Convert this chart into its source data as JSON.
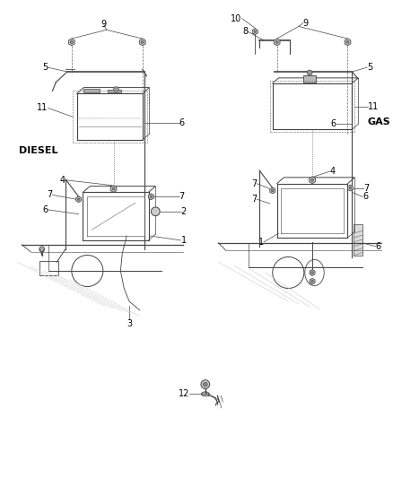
{
  "bg_color": "#ffffff",
  "lc": "#888888",
  "lc_dark": "#444444",
  "lc_med": "#666666",
  "label_color": "#000000",
  "fs": 7,
  "fs_big": 8,
  "left_label": "DIESEL",
  "right_label": "GAS",
  "figw": 4.38,
  "figh": 5.33,
  "dpi": 100
}
